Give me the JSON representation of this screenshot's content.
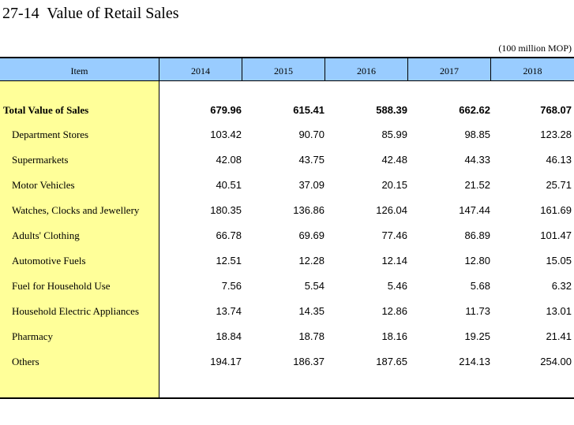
{
  "title": "27-14  Value of Retail Sales",
  "unit": "(100 million MOP)",
  "header": {
    "item": "Item",
    "years": [
      "2014",
      "2015",
      "2016",
      "2017",
      "2018"
    ]
  },
  "rows": [
    {
      "label": "Total Value of Sales",
      "values": [
        "679.96",
        "615.41",
        "588.39",
        "662.62",
        "768.07"
      ]
    },
    {
      "label": "Department Stores",
      "values": [
        "103.42",
        "90.70",
        "85.99",
        "98.85",
        "123.28"
      ]
    },
    {
      "label": "Supermarkets",
      "values": [
        "42.08",
        "43.75",
        "42.48",
        "44.33",
        "46.13"
      ]
    },
    {
      "label": "Motor Vehicles",
      "values": [
        "40.51",
        "37.09",
        "20.15",
        "21.52",
        "25.71"
      ]
    },
    {
      "label": "Watches, Clocks and Jewellery",
      "values": [
        "180.35",
        "136.86",
        "126.04",
        "147.44",
        "161.69"
      ]
    },
    {
      "label": "Adults' Clothing",
      "values": [
        "66.78",
        "69.69",
        "77.46",
        "86.89",
        "101.47"
      ]
    },
    {
      "label": "Automotive Fuels",
      "values": [
        "12.51",
        "12.28",
        "12.14",
        "12.80",
        "15.05"
      ]
    },
    {
      "label": "Fuel for Household Use",
      "values": [
        "7.56",
        "5.54",
        "5.46",
        "5.68",
        "6.32"
      ]
    },
    {
      "label": "Household Electric Appliances",
      "values": [
        "13.74",
        "14.35",
        "12.86",
        "11.73",
        "13.01"
      ]
    },
    {
      "label": "Pharmacy",
      "values": [
        "18.84",
        "18.78",
        "18.16",
        "19.25",
        "21.41"
      ]
    },
    {
      "label": "Others",
      "values": [
        "194.17",
        "186.37",
        "187.65",
        "214.13",
        "254.00"
      ]
    }
  ],
  "colors": {
    "header_bg": "#99ccff",
    "item_column_bg": "#ffff99"
  }
}
